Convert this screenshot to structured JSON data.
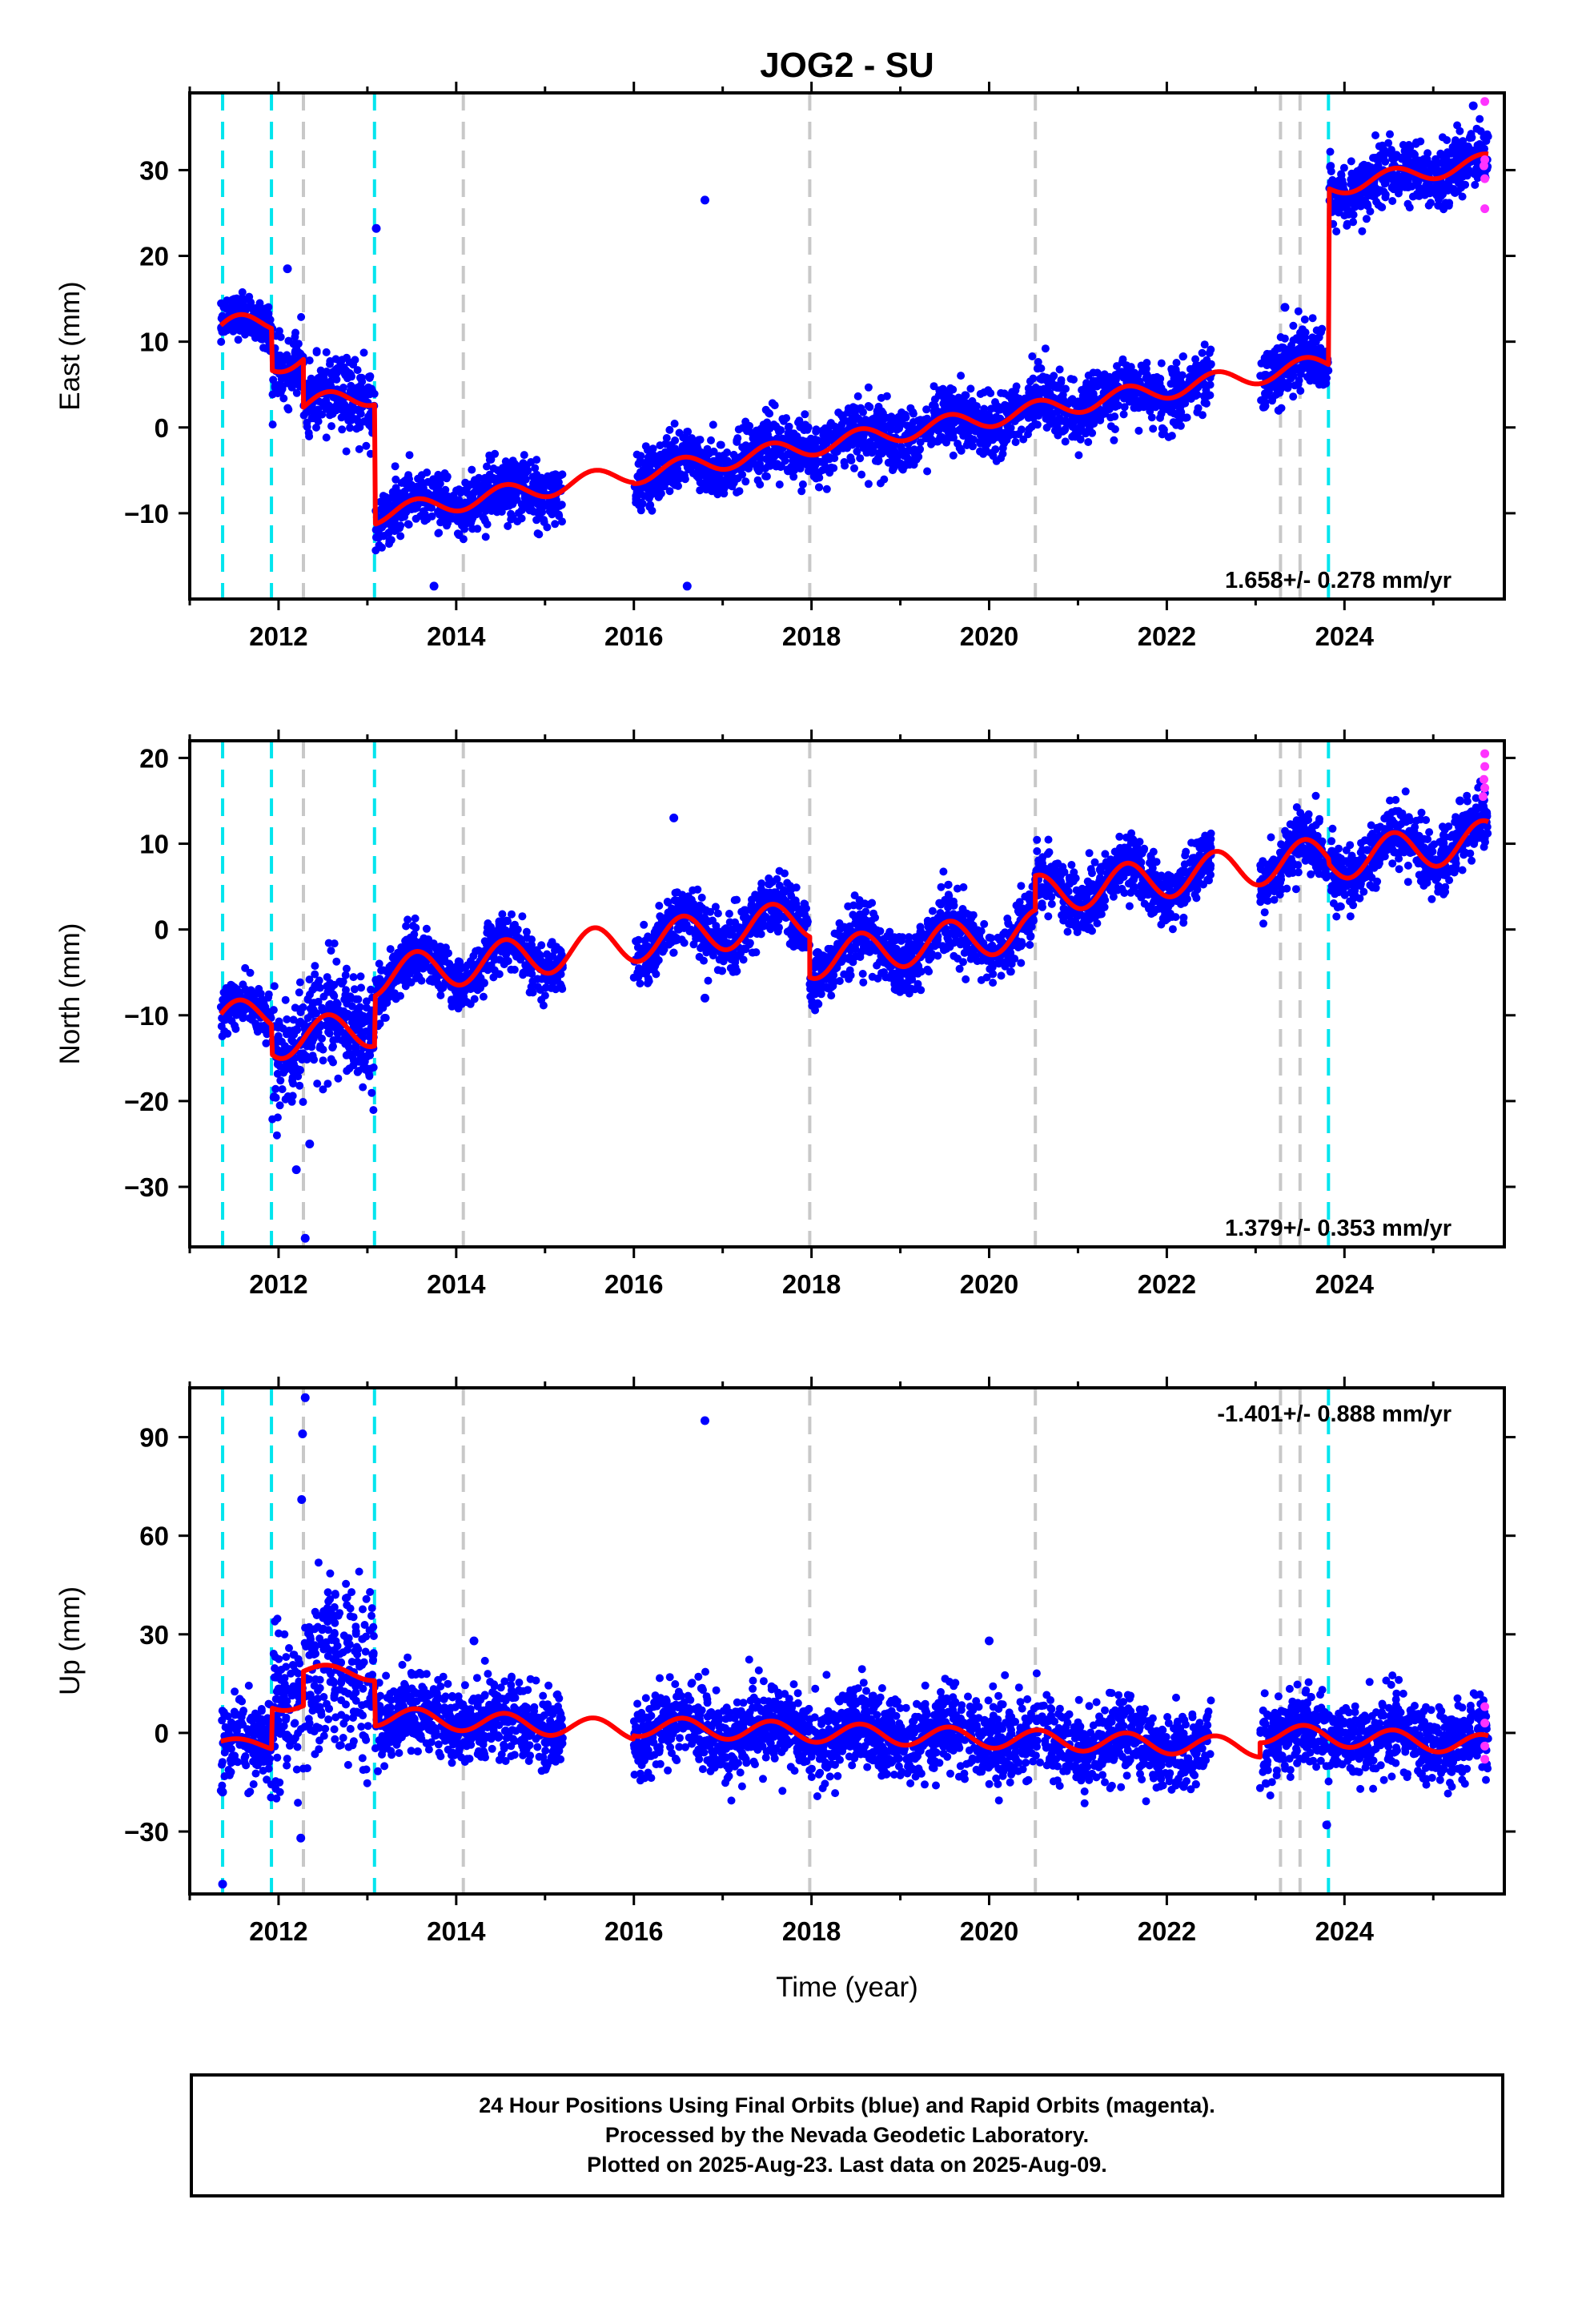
{
  "title": "JOG2 - SU",
  "xlabel": "Time (year)",
  "caption": {
    "line1": "24 Hour Positions Using Final Orbits (blue) and Rapid Orbits (magenta).",
    "line2": "Processed by the Nevada Geodetic Laboratory.",
    "line3": "Plotted on 2025-Aug-23. Last data on 2025-Aug-09."
  },
  "colors": {
    "final_orbits": "#0000ff",
    "rapid_orbits": "#ff33ff",
    "model_fit": "#ff0000",
    "equipment_change_lines": "#00e5ee",
    "other_event_lines": "#c8c8c8"
  },
  "chart_data": [
    {
      "type": "scatter",
      "panel": "east",
      "ylabel": "East (mm)",
      "xlim": [
        2011.0,
        2025.8
      ],
      "ylim": [
        -20,
        39
      ],
      "xticks": [
        2012,
        2014,
        2016,
        2018,
        2020,
        2022,
        2024
      ],
      "yticks": [
        -10,
        0,
        10,
        20,
        30
      ],
      "rate_label": "1.658+/- 0.278 mm/yr",
      "rate_position": "bottom-right",
      "event_lines_cyan": [
        2011.37,
        2011.92,
        2013.08,
        2023.82
      ],
      "event_lines_gray": [
        2012.28,
        2014.08,
        2017.98,
        2020.52,
        2023.28,
        2023.5
      ],
      "segments": [
        {
          "start": 2011.35,
          "end": 2011.92,
          "base": 11.5,
          "slope": 1.66,
          "amp": 1.3,
          "sigma": 1.2
        },
        {
          "start": 2011.93,
          "end": 2012.28,
          "base": 7.5,
          "slope": 1.66,
          "amp": 1.2,
          "sigma": 1.8
        },
        {
          "start": 2012.28,
          "end": 2013.08,
          "base": 2.5,
          "slope": 1.66,
          "amp": 1.2,
          "sigma": 2.2
        },
        {
          "start": 2013.09,
          "end": 2015.2,
          "base": -10.2,
          "slope": 1.66,
          "amp": 1.1,
          "sigma": 1.7
        },
        {
          "start": 2016.0,
          "end": 2023.82,
          "base": -5.5,
          "slope": 1.66,
          "amp": 1.1,
          "sigma": 1.7
        },
        {
          "start": 2023.83,
          "end": 2025.62,
          "base": 28.0,
          "slope": 1.66,
          "amp": 1.0,
          "sigma": 1.8
        }
      ],
      "gaps": [
        [
          2015.2,
          2016.0
        ],
        [
          2022.5,
          2023.05
        ]
      ],
      "outliers": [
        [
          2016.8,
          26.5
        ],
        [
          2016.6,
          -18.5
        ],
        [
          2013.75,
          -18.5
        ],
        [
          2013.1,
          23.2
        ],
        [
          2012.1,
          18.5
        ],
        [
          2023.33,
          14.0
        ],
        [
          2025.45,
          37.5
        ]
      ],
      "rapid_points": [
        [
          2025.58,
          38.0
        ],
        [
          2025.58,
          31.2
        ],
        [
          2025.58,
          29.0
        ],
        [
          2025.58,
          25.5
        ],
        [
          2025.57,
          30.5
        ]
      ]
    },
    {
      "type": "scatter",
      "panel": "north",
      "ylabel": "North (mm)",
      "xlim": [
        2011.0,
        2025.8
      ],
      "ylim": [
        -37,
        22
      ],
      "xticks": [
        2012,
        2014,
        2016,
        2018,
        2020,
        2022,
        2024
      ],
      "yticks": [
        -30,
        -20,
        -10,
        0,
        10,
        20
      ],
      "rate_label": "1.379+/- 0.353 mm/yr",
      "rate_position": "bottom-right",
      "event_lines_cyan": [
        2011.37,
        2011.92,
        2013.08,
        2023.82
      ],
      "event_lines_gray": [
        2012.28,
        2014.08,
        2017.98,
        2020.52,
        2023.28,
        2023.5
      ],
      "segments": [
        {
          "start": 2011.35,
          "end": 2011.92,
          "base": -10.5,
          "slope": 1.38,
          "amp": 2.0,
          "sigma": 1.2
        },
        {
          "start": 2011.93,
          "end": 2013.08,
          "base": -13.0,
          "slope": 1.38,
          "amp": 2.2,
          "sigma": 3.0
        },
        {
          "start": 2013.09,
          "end": 2015.2,
          "base": -5.5,
          "slope": 1.38,
          "amp": 2.3,
          "sigma": 1.6
        },
        {
          "start": 2016.0,
          "end": 2017.98,
          "base": -1.5,
          "slope": 1.38,
          "amp": 2.3,
          "sigma": 1.7
        },
        {
          "start": 2017.98,
          "end": 2020.52,
          "base": -3.5,
          "slope": 1.38,
          "amp": 2.3,
          "sigma": 1.7
        },
        {
          "start": 2020.52,
          "end": 2023.82,
          "base": 4.0,
          "slope": 1.38,
          "amp": 2.3,
          "sigma": 1.7
        },
        {
          "start": 2023.83,
          "end": 2025.62,
          "base": 8.0,
          "slope": 1.38,
          "amp": 2.3,
          "sigma": 1.7
        }
      ],
      "gaps": [
        [
          2015.2,
          2016.0
        ],
        [
          2022.5,
          2023.05
        ]
      ],
      "outliers": [
        [
          2012.2,
          -28.0
        ],
        [
          2012.3,
          -36.0
        ],
        [
          2012.35,
          -25.0
        ],
        [
          2016.45,
          13.0
        ],
        [
          2016.8,
          -8.0
        ],
        [
          2025.3,
          15.0
        ]
      ],
      "rapid_points": [
        [
          2025.58,
          20.5
        ],
        [
          2025.58,
          19.0
        ],
        [
          2025.57,
          17.5
        ],
        [
          2025.58,
          16.5
        ],
        [
          2025.56,
          15.5
        ]
      ]
    },
    {
      "type": "scatter",
      "panel": "up",
      "ylabel": "Up (mm)",
      "xlim": [
        2011.0,
        2025.8
      ],
      "ylim": [
        -49,
        105
      ],
      "xticks": [
        2012,
        2014,
        2016,
        2018,
        2020,
        2022,
        2024
      ],
      "yticks": [
        -30,
        0,
        30,
        60,
        90
      ],
      "rate_label": "-1.401+/- 0.888 mm/yr",
      "rate_position": "top-right",
      "event_lines_cyan": [
        2011.37,
        2011.92,
        2013.08,
        2023.82
      ],
      "event_lines_gray": [
        2012.28,
        2014.08,
        2017.98,
        2020.52,
        2023.28,
        2023.5
      ],
      "segments": [
        {
          "start": 2011.35,
          "end": 2011.92,
          "base": -3.0,
          "slope": -1.4,
          "amp": 1.5,
          "sigma": 6.0
        },
        {
          "start": 2011.93,
          "end": 2012.28,
          "base": 9.0,
          "slope": -1.4,
          "amp": 2.0,
          "sigma": 12.0
        },
        {
          "start": 2012.28,
          "end": 2013.08,
          "base": 19.0,
          "slope": -1.4,
          "amp": 2.0,
          "sigma": 13.0
        },
        {
          "start": 2013.09,
          "end": 2015.2,
          "base": 5.0,
          "slope": -1.4,
          "amp": 3.0,
          "sigma": 6.0
        },
        {
          "start": 2016.0,
          "end": 2023.05,
          "base": 2.0,
          "slope": -0.9,
          "amp": 3.0,
          "sigma": 6.0
        },
        {
          "start": 2023.05,
          "end": 2025.62,
          "base": 0.0,
          "slope": -1.4,
          "amp": 3.0,
          "sigma": 5.5
        }
      ],
      "gaps": [
        [
          2015.2,
          2016.0
        ],
        [
          2022.5,
          2023.05
        ]
      ],
      "outliers": [
        [
          2012.3,
          102.0
        ],
        [
          2012.27,
          91.0
        ],
        [
          2012.26,
          71.0
        ],
        [
          2016.8,
          95.0
        ],
        [
          2011.37,
          -46.0
        ],
        [
          2011.37,
          -18.0
        ],
        [
          2012.25,
          -32.0
        ],
        [
          2023.8,
          -28.0
        ],
        [
          2020.0,
          28.0
        ],
        [
          2014.2,
          28.0
        ]
      ],
      "rapid_points": [
        [
          2025.58,
          8.0
        ],
        [
          2025.58,
          3.0
        ],
        [
          2025.58,
          -4.0
        ],
        [
          2025.58,
          -8.0
        ]
      ]
    }
  ]
}
